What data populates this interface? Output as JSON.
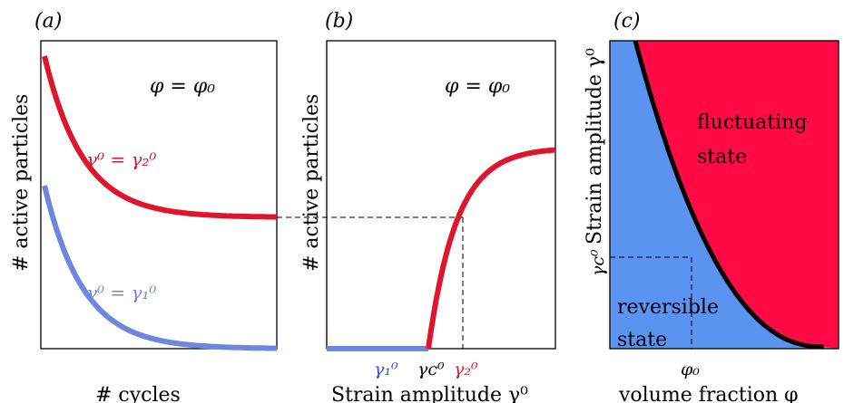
{
  "colors": {
    "red": "#e1142d",
    "blue": "#6f86df",
    "blue_region": "#5b93f0",
    "red_region": "#ff0a45",
    "black": "#000000"
  },
  "panel_a": {
    "tag": "(a)",
    "phi_eq": "φ = φ₀",
    "ylabel": "# active particles",
    "xlabel": "# cycles",
    "red_curve_label": "γ⁰ = γ₂⁰",
    "blue_curve_label": "γ⁰ = γ₁⁰"
  },
  "panel_b": {
    "tag": "(b)",
    "phi_eq": "φ = φ₀",
    "ylabel": "# active particles",
    "xlabel": "Strain amplitude γ⁰",
    "tick_gamma1": "γ₁⁰",
    "tick_gammac": "γc⁰",
    "tick_gamma2": "γ₂⁰"
  },
  "panel_c": {
    "tag": "(c)",
    "ylabel": "Strain amplitude γ⁰",
    "xlabel": "volume fraction φ",
    "region_top_line1": "fluctuating",
    "region_top_line2": "state",
    "region_bottom_line1": "reversible",
    "region_bottom_line2": "state",
    "tick_gammac": "γc⁰",
    "tick_phi0": "φ₀"
  }
}
